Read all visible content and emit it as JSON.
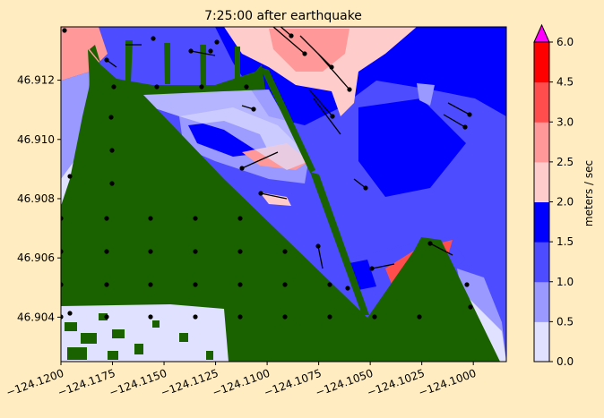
{
  "chart_data": {
    "type": "heatmap",
    "title": "7:25:00 after earthquake",
    "xlabel": "",
    "ylabel": "",
    "xlim": [
      -124.12,
      -124.0984
    ],
    "ylim": [
      46.9025,
      46.9138
    ],
    "x_ticks": [
      "−124.1200",
      "−124.1175",
      "−124.1150",
      "−124.1125",
      "−124.1100",
      "−124.1075",
      "−124.1050",
      "−124.1025",
      "−124.1000"
    ],
    "x_tick_values": [
      -124.12,
      -124.1175,
      -124.115,
      -124.1125,
      -124.11,
      -124.1075,
      -124.105,
      -124.1025,
      -124.1
    ],
    "y_ticks": [
      "46.904",
      "46.906",
      "46.908",
      "46.910",
      "46.912"
    ],
    "y_tick_values": [
      46.904,
      46.906,
      46.908,
      46.91,
      46.912
    ],
    "colorbar": {
      "label": "meters / sec",
      "levels": [
        0.0,
        0.5,
        1.0,
        1.5,
        2.0,
        2.5,
        3.0,
        4.5,
        6.0
      ],
      "tick_labels": [
        "0.0",
        "0.5",
        "1.0",
        "1.5",
        "2.0",
        "2.5",
        "3.0",
        "4.5",
        "6.0"
      ],
      "colors": [
        "#e0e0ff",
        "#9999ff",
        "#4d4dff",
        "#0000ff",
        "#ffcccc",
        "#ff9999",
        "#ff4d4d",
        "#ff0000"
      ],
      "extend_max_color": "#ff00ff"
    },
    "land_color": "#1a6100"
  }
}
